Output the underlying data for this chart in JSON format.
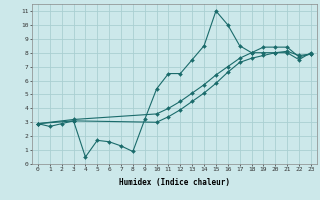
{
  "title": "",
  "xlabel": "Humidex (Indice chaleur)",
  "bg_color": "#cce8ea",
  "grid_color": "#aacfd2",
  "line_color": "#1a6b6b",
  "xlim": [
    -0.5,
    23.5
  ],
  "ylim": [
    0,
    11.5
  ],
  "line1_x": [
    0,
    1,
    2,
    3,
    4,
    5,
    6,
    7,
    8,
    9,
    10,
    11,
    12,
    13,
    14,
    15,
    16,
    17,
    18,
    19,
    20,
    21,
    22,
    23
  ],
  "line1_y": [
    2.9,
    2.7,
    2.9,
    3.1,
    0.5,
    1.7,
    1.6,
    1.3,
    0.9,
    3.2,
    5.4,
    6.5,
    6.5,
    7.5,
    8.5,
    11.0,
    10.0,
    8.5,
    8.0,
    8.0,
    8.0,
    8.0,
    7.5,
    8.0
  ],
  "line2_x": [
    0,
    3,
    10,
    11,
    12,
    13,
    14,
    15,
    16,
    17,
    18,
    19,
    20,
    21,
    22,
    23
  ],
  "line2_y": [
    2.9,
    3.2,
    3.6,
    4.0,
    4.5,
    5.1,
    5.7,
    6.4,
    7.0,
    7.6,
    8.0,
    8.4,
    8.4,
    8.4,
    7.7,
    7.9
  ],
  "line3_x": [
    0,
    3,
    10,
    11,
    12,
    13,
    14,
    15,
    16,
    17,
    18,
    19,
    20,
    21,
    22,
    23
  ],
  "line3_y": [
    2.9,
    3.1,
    3.0,
    3.4,
    3.9,
    4.5,
    5.1,
    5.8,
    6.6,
    7.3,
    7.6,
    7.8,
    8.0,
    8.1,
    7.8,
    7.9
  ],
  "xtick_labels": [
    "0",
    "1",
    "2",
    "3",
    "4",
    "5",
    "6",
    "7",
    "8",
    "9",
    "10",
    "11",
    "12",
    "13",
    "14",
    "15",
    "16",
    "17",
    "18",
    "19",
    "20",
    "21",
    "22",
    "23"
  ],
  "ytick_labels": [
    "0",
    "1",
    "2",
    "3",
    "4",
    "5",
    "6",
    "7",
    "8",
    "9",
    "10",
    "11"
  ]
}
